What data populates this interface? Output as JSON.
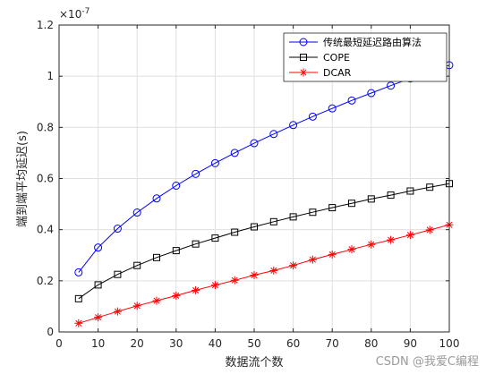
{
  "chart_data": {
    "type": "line",
    "xlabel": "数据流个数",
    "ylabel": "端到端平均延迟(s)",
    "y_multiplier": "×10",
    "y_exponent": "-7",
    "xlim": [
      0,
      100
    ],
    "ylim": [
      0,
      1.2
    ],
    "xticks": [
      "0",
      "10",
      "20",
      "30",
      "40",
      "50",
      "60",
      "70",
      "80",
      "90",
      "100"
    ],
    "yticks": [
      "0",
      "0.2",
      "0.4",
      "0.6",
      "0.8",
      "1",
      "1.2"
    ],
    "x": [
      5,
      10,
      15,
      20,
      25,
      30,
      35,
      40,
      45,
      50,
      55,
      60,
      65,
      70,
      75,
      80,
      85,
      90,
      95,
      100
    ],
    "grid": true,
    "legend_position": "top-right",
    "series": [
      {
        "name": "传统最短延迟路由算法",
        "color": "#0000ff",
        "marker": "circle",
        "values": [
          0.233,
          0.33,
          0.404,
          0.467,
          0.522,
          0.572,
          0.618,
          0.66,
          0.7,
          0.738,
          0.774,
          0.809,
          0.842,
          0.874,
          0.905,
          0.934,
          0.963,
          0.991,
          1.018,
          1.043
        ]
      },
      {
        "name": "COPE",
        "color": "#000000",
        "marker": "square",
        "values": [
          0.13,
          0.184,
          0.225,
          0.26,
          0.291,
          0.318,
          0.344,
          0.367,
          0.39,
          0.411,
          0.431,
          0.45,
          0.468,
          0.486,
          0.503,
          0.52,
          0.535,
          0.551,
          0.566,
          0.58
        ]
      },
      {
        "name": "DCAR",
        "color": "#ff0000",
        "marker": "star",
        "values": [
          0.034,
          0.057,
          0.08,
          0.102,
          0.122,
          0.142,
          0.163,
          0.183,
          0.202,
          0.222,
          0.24,
          0.26,
          0.283,
          0.303,
          0.323,
          0.342,
          0.36,
          0.379,
          0.399,
          0.419
        ]
      }
    ]
  },
  "watermark": "CSDN @我爱C编程"
}
